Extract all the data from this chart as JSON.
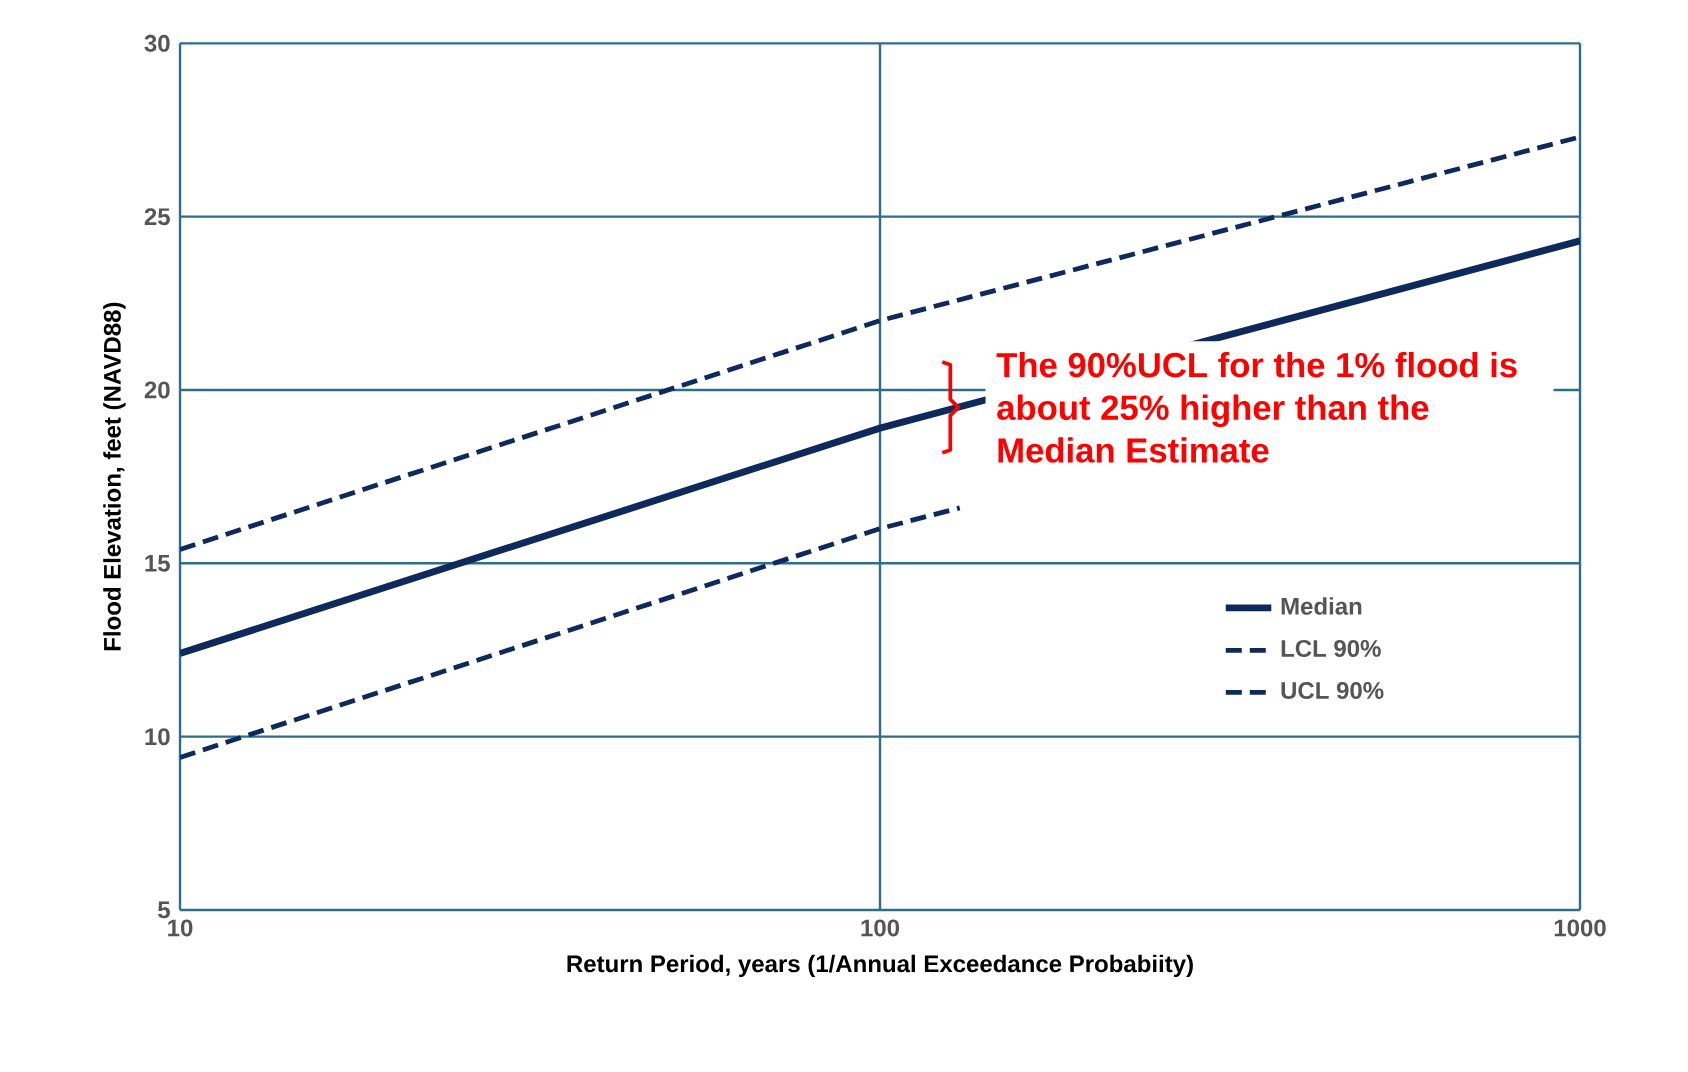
{
  "chart_data": {
    "type": "line",
    "xlabel": "Return Period, years (1/Annual Exceedance Probabiity)",
    "ylabel": "Flood  Elevation, feet (NAVD88)",
    "log": "x",
    "grid": true,
    "legend": "right",
    "xlim": [
      10,
      1000
    ],
    "ylim": [
      5,
      30
    ],
    "xticks": [
      10,
      100,
      1000
    ],
    "yticks": [
      5,
      10,
      15,
      20,
      25,
      30
    ],
    "series": [
      {
        "name": "Median",
        "color": "#0e2a5c",
        "line_style": "solid",
        "x": [
          10,
          100,
          1000
        ],
        "values": [
          12.4,
          18.9,
          24.3
        ]
      },
      {
        "name": "LCL 90%",
        "color": "#0e2a5c",
        "line_style": "dashed",
        "x": [
          10,
          100,
          130
        ],
        "values": [
          9.4,
          16.0,
          16.6
        ]
      },
      {
        "name": "UCL 90%",
        "color": "#0e2a5c",
        "line_style": "dashed",
        "x": [
          10,
          100,
          1000
        ],
        "values": [
          15.4,
          22.0,
          27.3
        ]
      }
    ],
    "annotations": [
      "The 90%UCL for the 1% flood is about 25% higher than the Median Estimate"
    ]
  }
}
